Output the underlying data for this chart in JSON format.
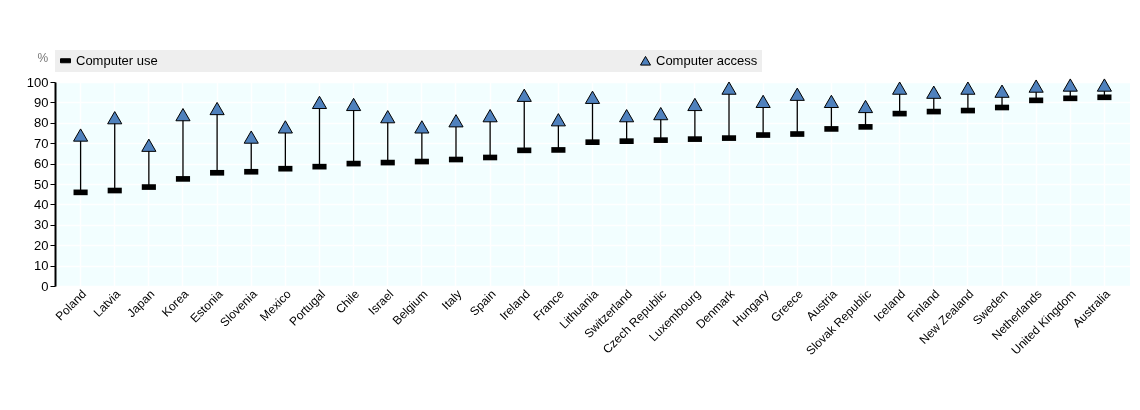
{
  "chart_data": {
    "type": "scatter",
    "ylabel": "%",
    "legend": "top",
    "grid": true,
    "categories": [
      "Poland",
      "Latvia",
      "Japan",
      "Korea",
      "Estonia",
      "Slovenia",
      "Mexico",
      "Portugal",
      "Chile",
      "Israel",
      "Belgium",
      "Italy",
      "Spain",
      "Ireland",
      "France",
      "Lithuania",
      "Switzerland",
      "Czech Republic",
      "Luxembourg",
      "Denmark",
      "Hungary",
      "Greece",
      "Austria",
      "Slovak Republic",
      "Iceland",
      "Finland",
      "New Zealand",
      "Sweden",
      "Netherlands",
      "United Kingdom",
      "Australia"
    ],
    "ylim": [
      0,
      100
    ],
    "yticks": [
      0,
      10,
      20,
      30,
      40,
      50,
      60,
      70,
      80,
      90,
      100
    ],
    "series": [
      {
        "name": "Computer use",
        "color": "#000000",
        "marker": "square",
        "values": [
          45.9,
          46.8,
          48.5,
          52.5,
          55.5,
          56,
          57.5,
          58.5,
          60,
          60.5,
          61,
          62,
          63,
          66.5,
          66.7,
          70.5,
          71,
          71.5,
          72,
          72.5,
          74,
          74.5,
          77,
          78,
          84.5,
          85.5,
          86,
          87.5,
          91,
          92,
          92.5
        ]
      },
      {
        "name": "Computer access",
        "color": "#4f81bd",
        "marker": "triangle",
        "values": [
          74,
          82.5,
          69,
          84,
          87,
          73,
          78,
          90,
          89,
          83,
          78,
          81,
          83.5,
          93.5,
          81.5,
          92.5,
          83.5,
          84.5,
          89,
          97,
          90.5,
          94,
          90.5,
          88,
          97,
          95,
          97,
          95.5,
          98,
          98.5,
          98.5
        ]
      }
    ]
  }
}
